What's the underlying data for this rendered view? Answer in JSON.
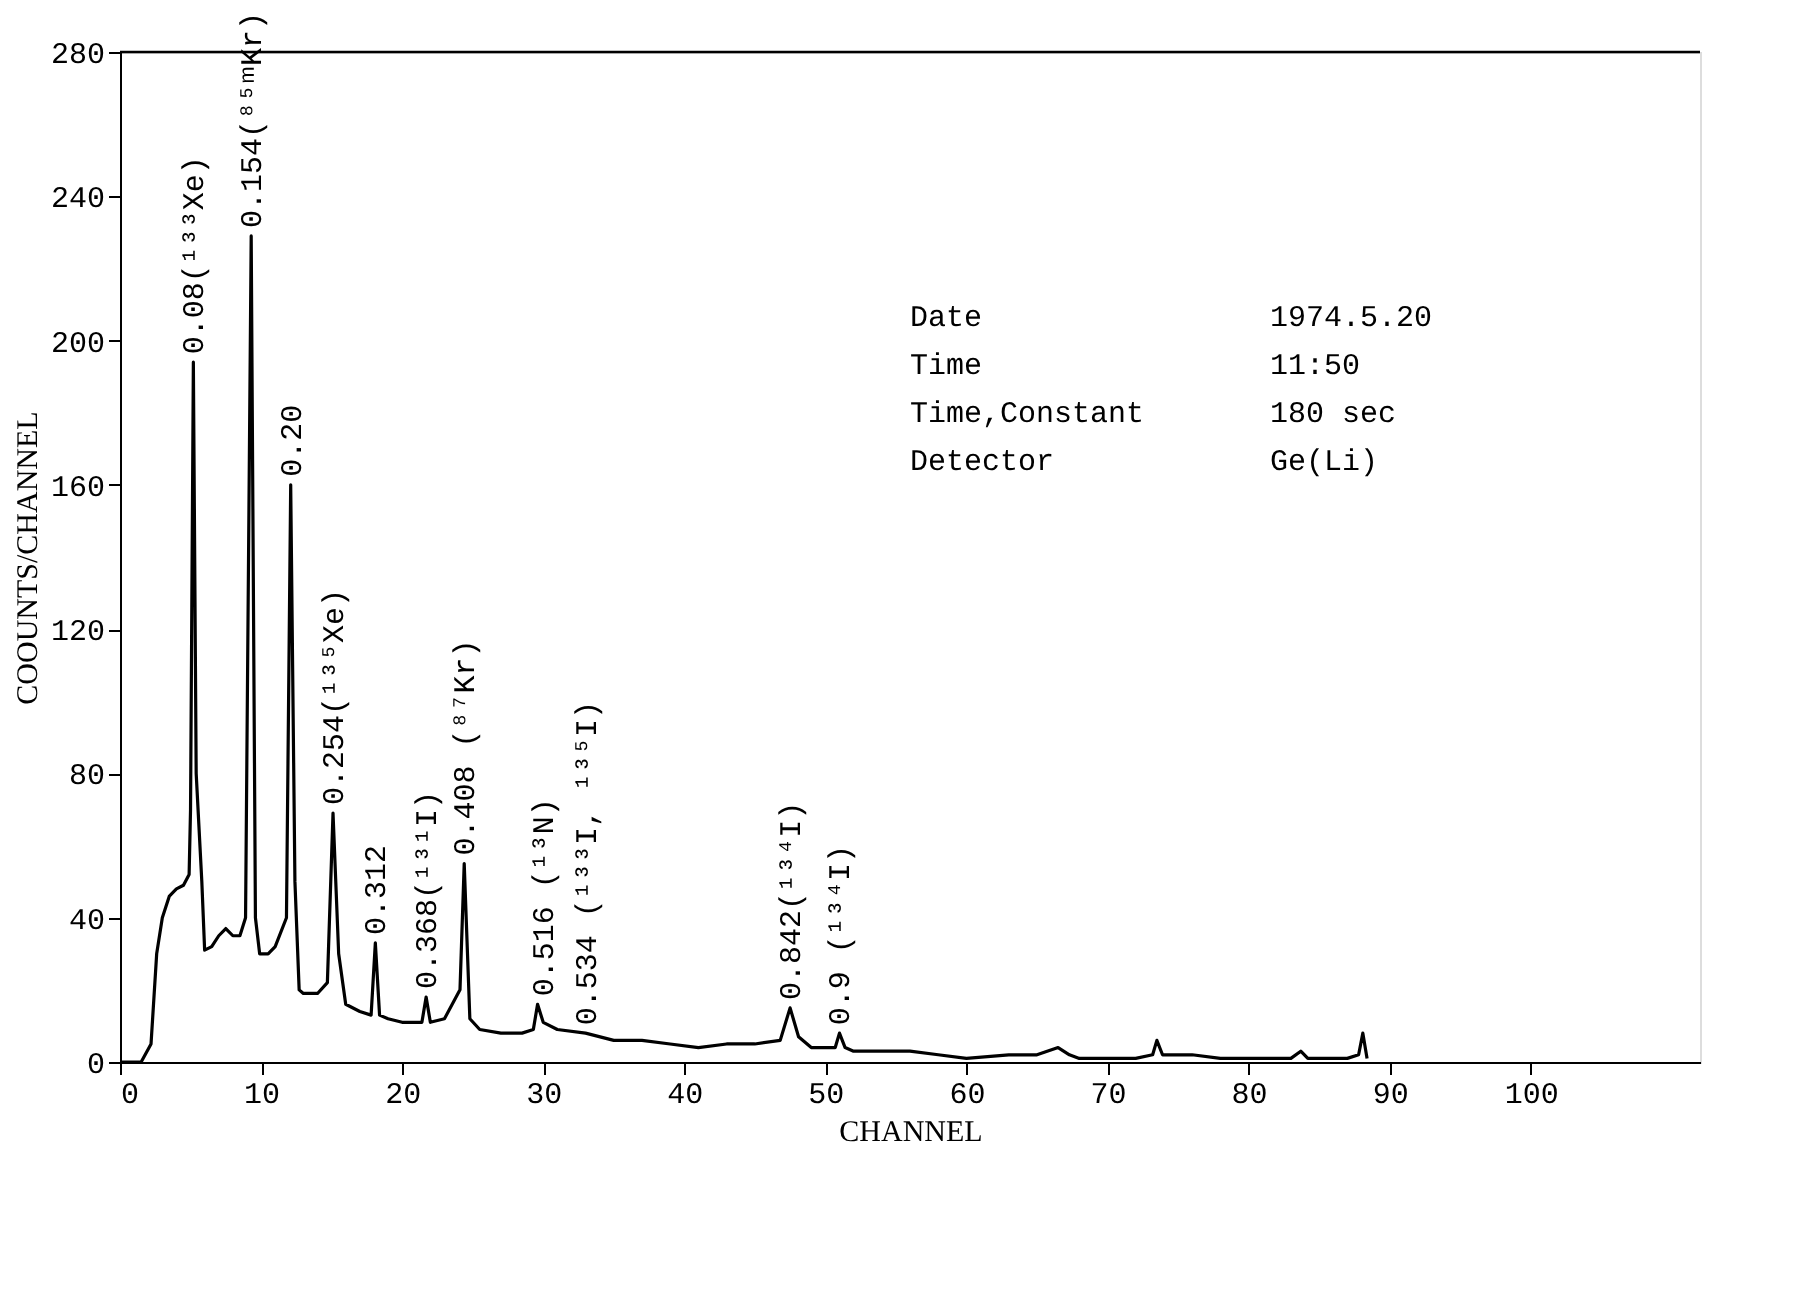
{
  "chart_data": {
    "type": "line",
    "xlabel": "CHANNEL",
    "ylabel": "COOUNTS/CHANNEL",
    "xlim": [
      0,
      112
    ],
    "xticks": [
      0,
      10,
      20,
      30,
      40,
      50,
      60,
      70,
      80,
      90,
      100
    ],
    "ylim": [
      0,
      280
    ],
    "yticks": [
      0,
      40,
      80,
      120,
      160,
      200,
      240,
      280
    ],
    "grid": false,
    "marker": "none",
    "line_style": "solid",
    "series": [
      {
        "color": "#000000",
        "x": [
          0,
          1.5,
          2.2,
          2.6,
          3,
          3.5,
          4,
          4.5,
          4.9,
          5.0,
          5.2,
          5.4,
          5.8,
          6.0,
          6.5,
          7,
          7.5,
          8,
          8.5,
          8.9,
          9.3,
          9.6,
          9.9,
          10.5,
          11,
          11.8,
          12.1,
          12.4,
          12.7,
          13,
          14,
          14.7,
          15.1,
          15.5,
          16,
          17,
          17.8,
          18.1,
          18.4,
          19,
          20,
          21.4,
          21.7,
          22,
          23,
          24.1,
          24.4,
          24.8,
          25.5,
          27,
          28.5,
          29.3,
          29.6,
          30,
          31,
          33,
          35,
          37,
          39,
          41,
          43,
          45,
          46.8,
          47.5,
          48.1,
          49,
          50,
          50.7,
          51,
          51.4,
          52,
          54,
          56,
          58,
          60,
          63,
          65,
          66.5,
          67.3,
          68,
          70,
          72,
          73.2,
          73.5,
          73.9,
          76,
          78,
          80,
          83,
          83.7,
          84.2,
          87,
          87.8,
          88.1,
          88.4
        ],
        "values": [
          0,
          0,
          5,
          30,
          40,
          46,
          48,
          49,
          52,
          70,
          194,
          80,
          50,
          31,
          32,
          35,
          37,
          35,
          35,
          40,
          229,
          40,
          30,
          30,
          32,
          40,
          160,
          50,
          20,
          19,
          19,
          22,
          69,
          30,
          16,
          14,
          13,
          33,
          13,
          12,
          11,
          11,
          18,
          11,
          12,
          20,
          55,
          12,
          9,
          8,
          8,
          9,
          16,
          11,
          9,
          8,
          6,
          6,
          5,
          4,
          5,
          5,
          6,
          15,
          7,
          4,
          4,
          4,
          8,
          4,
          3,
          3,
          3,
          2,
          1,
          2,
          2,
          4,
          2,
          1,
          1,
          1,
          2,
          6,
          2,
          2,
          1,
          1,
          1,
          3,
          1,
          1,
          2,
          8,
          1
        ]
      }
    ],
    "annotations": [
      {
        "text": "0.08(¹³³Xe)",
        "x": 5.2,
        "y": 194
      },
      {
        "text": "0.154(⁸⁵ᵐKr)",
        "x": 9.3,
        "y": 229
      },
      {
        "text": "0.20",
        "x": 12.1,
        "y": 160
      },
      {
        "text": "0.254(¹³⁵Xe)",
        "x": 15.1,
        "y": 69
      },
      {
        "text": "0.312",
        "x": 18.1,
        "y": 33
      },
      {
        "text": "0.368(¹³¹I)",
        "x": 21.7,
        "y": 18
      },
      {
        "text": "0.408 (⁸⁷Kr)",
        "x": 24.4,
        "y": 55
      },
      {
        "text": "0.516 (¹³N)",
        "x": 30,
        "y": 16
      },
      {
        "text": "0.534 (¹³³I, ¹³⁵I)",
        "x": 33,
        "y": 8
      },
      {
        "text": "0.842(¹³⁴I)",
        "x": 47.5,
        "y": 15
      },
      {
        "text": "0.9 (¹³⁴I)",
        "x": 51,
        "y": 8
      },
      "Date",
      "1974.5.20",
      "Time",
      "11:50",
      "Time,Constant",
      "180 sec",
      "Detector",
      "Ge(Li)"
    ]
  }
}
